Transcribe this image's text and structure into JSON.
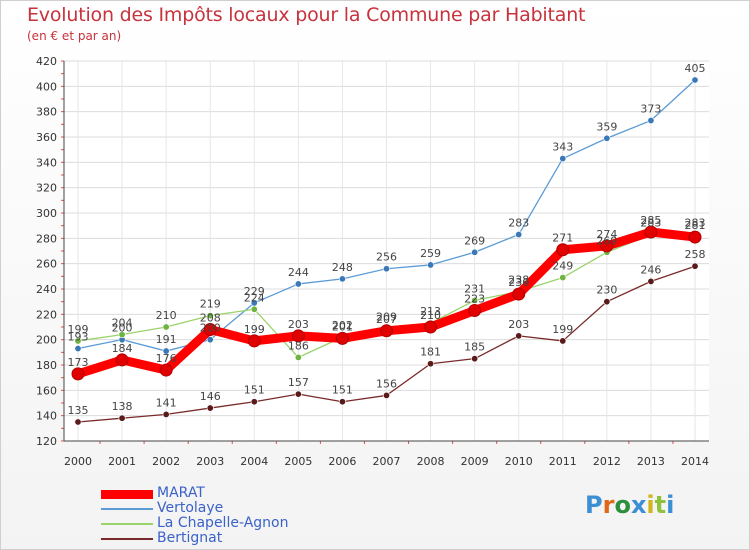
{
  "title": "Evolution des Impôts locaux pour la Commune par Habitant",
  "subtitle": "(en € et par an)",
  "logo": {
    "text": "Proxiti",
    "colors": [
      "#3b8fd4",
      "#e0681b",
      "#2d8f3e",
      "#3b8fd4",
      "#d1b51e",
      "#8fc13a"
    ]
  },
  "chart_data": {
    "type": "line",
    "title": "Evolution des Impôts locaux pour la Commune par Habitant",
    "subtitle": "(en € et par an)",
    "xlabel": "",
    "ylabel": "",
    "x": [
      2000,
      2001,
      2002,
      2003,
      2004,
      2005,
      2006,
      2007,
      2008,
      2009,
      2010,
      2011,
      2012,
      2013,
      2014
    ],
    "ylim": [
      120,
      420
    ],
    "yticks": [
      120,
      140,
      160,
      180,
      200,
      220,
      240,
      260,
      280,
      300,
      320,
      340,
      360,
      380,
      400,
      420
    ],
    "grid": true,
    "legend_position": "bottom-left",
    "series": [
      {
        "name": "Vertolaye",
        "color": "#5b9bd5",
        "marker": "#3a78b8",
        "values": [
          193,
          200,
          191,
          200,
          229,
          244,
          248,
          256,
          259,
          269,
          283,
          343,
          359,
          373,
          405
        ],
        "labels": [
          "193",
          "200",
          "191",
          "200",
          "229",
          "244",
          "248",
          "256",
          "259",
          "269",
          "283",
          "343",
          "359",
          "373",
          "405"
        ]
      },
      {
        "name": "La Chapelle-Agnon",
        "color": "#9ad36a",
        "marker": "#6cb33f",
        "values": [
          199,
          204,
          210,
          219,
          224,
          186,
          202,
          209,
          213,
          231,
          238,
          249,
          269,
          283,
          283
        ],
        "labels": [
          "199",
          "204",
          "210",
          "219",
          "224",
          "186",
          "202",
          "209",
          "213",
          "231",
          "238",
          "249",
          "269",
          "283",
          "283"
        ]
      },
      {
        "name": "Bertignat",
        "color": "#7a2a2a",
        "marker": "#5a1a1a",
        "values": [
          135,
          138,
          141,
          146,
          151,
          157,
          151,
          156,
          181,
          185,
          203,
          199,
          230,
          246,
          258
        ],
        "labels": [
          "135",
          "138",
          "141",
          "146",
          "151",
          "157",
          "151",
          "156",
          "181",
          "185",
          "203",
          "199",
          "230",
          "246",
          "258"
        ]
      },
      {
        "name": "MARAT",
        "color": "#ff0000",
        "marker": "#e00000",
        "values": [
          173,
          184,
          176,
          208,
          199,
          203,
          201,
          207,
          210,
          223,
          236,
          271,
          274,
          285,
          281
        ],
        "labels": [
          "173",
          "184",
          "176",
          "208",
          "199",
          "203",
          "201",
          "207",
          "210",
          "223",
          "236",
          "271",
          "274",
          "285",
          "281"
        ]
      }
    ],
    "legend": [
      "MARAT",
      "Vertolaye",
      "La Chapelle-Agnon",
      "Bertignat"
    ]
  }
}
